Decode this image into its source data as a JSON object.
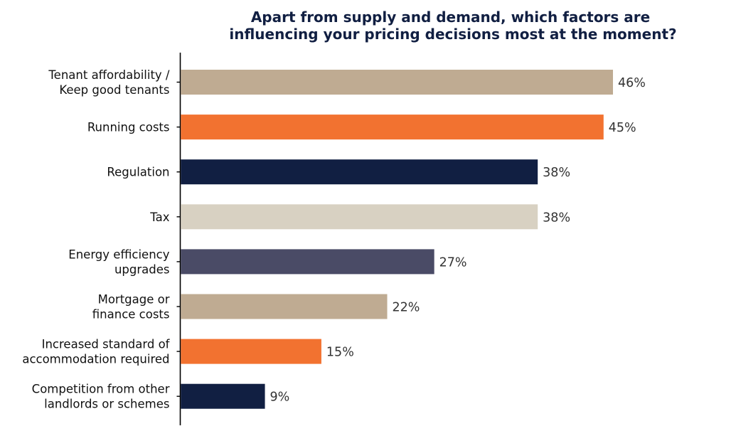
{
  "chart_data": {
    "type": "bar",
    "orientation": "horizontal",
    "title": "Apart from supply and demand, which factors are influencing your pricing decisions most at the moment?",
    "title_lines": [
      "Apart from supply and demand, which factors are",
      "influencing your pricing decisions most at the moment?"
    ],
    "xlabel": "",
    "ylabel": "",
    "xlim": [
      0,
      50
    ],
    "grid": false,
    "categories": [
      [
        "Tenant affordability /",
        "Keep good tenants"
      ],
      [
        "Running costs"
      ],
      [
        "Regulation"
      ],
      [
        "Tax"
      ],
      [
        "Energy efficiency",
        "upgrades"
      ],
      [
        "Mortgage or",
        "finance costs"
      ],
      [
        "Increased standard of",
        "accommodation required"
      ],
      [
        "Competition from other",
        "landlords or schemes"
      ]
    ],
    "values": [
      46,
      45,
      38,
      38,
      27,
      22,
      15,
      9
    ],
    "value_labels": [
      "46%",
      "45%",
      "38%",
      "38%",
      "27%",
      "22%",
      "15%",
      "9%"
    ],
    "bar_colors": [
      "#bfab92",
      "#f27230",
      "#111f42",
      "#d8d1c2",
      "#4a4b66",
      "#bfab92",
      "#f27230",
      "#111f42"
    ]
  }
}
